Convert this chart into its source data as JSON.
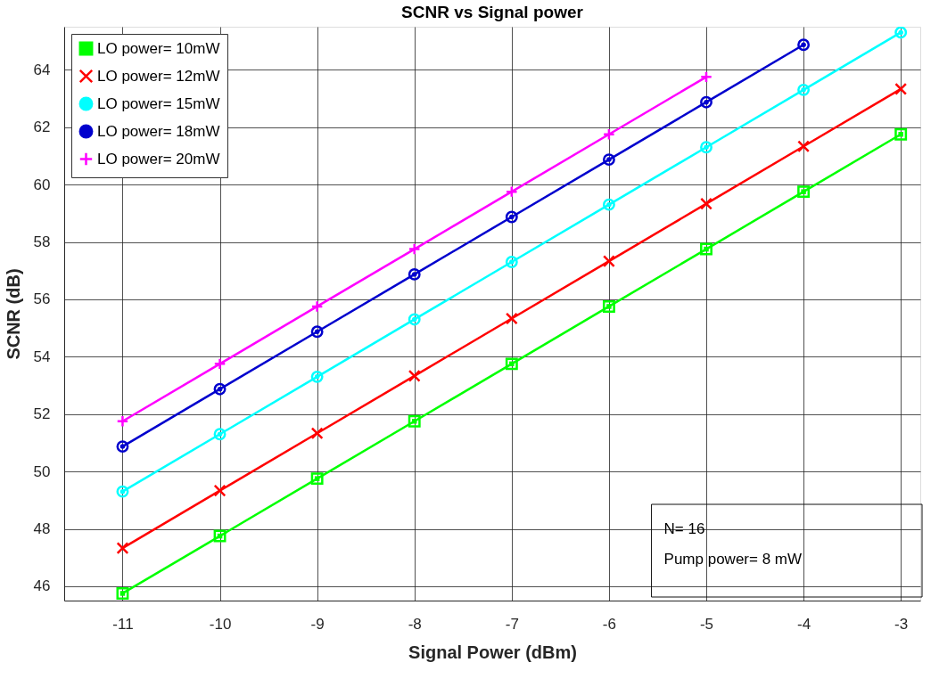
{
  "chart_data": {
    "type": "line",
    "title": "SCNR vs Signal power",
    "xlabel": "Signal Power (dBm)",
    "ylabel": "SCNR (dB)",
    "x": [
      -11,
      -10,
      -9,
      -8,
      -7,
      -6,
      -5,
      -4,
      -3
    ],
    "series": [
      {
        "name": "LO power= 10mW",
        "color": "#00ff00",
        "marker": "square",
        "values": [
          45.75,
          47.75,
          49.75,
          51.75,
          53.75,
          55.75,
          57.75,
          59.75,
          61.75
        ]
      },
      {
        "name": "LO power= 12mW",
        "color": "#ff0000",
        "marker": "cross",
        "values": [
          47.33,
          49.33,
          51.33,
          53.33,
          55.33,
          57.33,
          59.33,
          61.33,
          63.33
        ]
      },
      {
        "name": "LO power= 15mW",
        "color": "#00ffff",
        "marker": "circle",
        "values": [
          49.3,
          51.3,
          53.3,
          55.3,
          57.3,
          59.3,
          61.3,
          63.3,
          65.3
        ]
      },
      {
        "name": "LO power= 18mW",
        "color": "#0000cd",
        "marker": "circle",
        "values": [
          50.87,
          52.87,
          54.87,
          56.87,
          58.87,
          60.87,
          62.87,
          64.87,
          null
        ]
      },
      {
        "name": "LO power= 20mW",
        "color": "#ff00ff",
        "marker": "plus",
        "values": [
          51.75,
          53.75,
          55.75,
          57.75,
          59.75,
          61.75,
          63.75,
          null,
          null
        ]
      }
    ],
    "xlim": [
      -11.6,
      -2.8
    ],
    "ylim": [
      45.5,
      65.5
    ],
    "xticks": [
      -11,
      -10,
      -9,
      -8,
      -7,
      -6,
      -5,
      -4,
      -3
    ],
    "yticks": [
      46,
      48,
      50,
      52,
      54,
      56,
      58,
      60,
      62,
      64
    ],
    "grid": true,
    "legend": "top left",
    "line_style": "solid",
    "annotations": [
      "N= 16",
      "Pump power= 8 mW"
    ]
  }
}
